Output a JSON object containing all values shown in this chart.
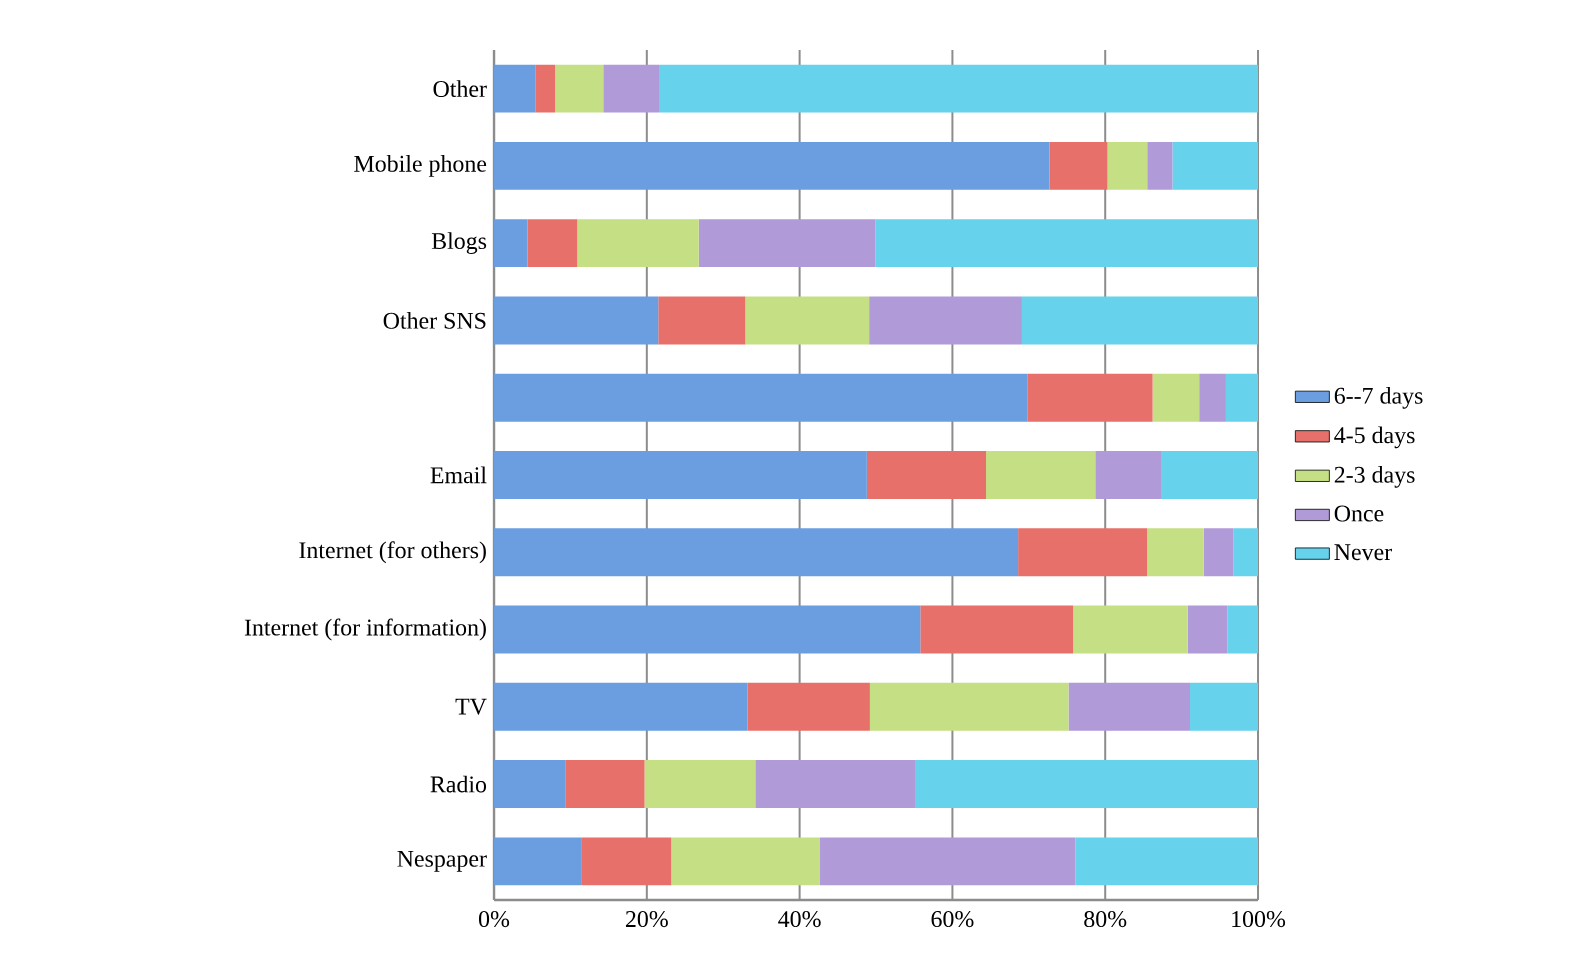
{
  "chart_data": {
    "type": "bar",
    "orientation": "horizontal",
    "stacked": true,
    "categories": [
      "Other",
      "Mobile phone",
      "Blogs",
      "Other SNS",
      null,
      "Email",
      "Internet (for others)",
      "Internet (for information)",
      "TV",
      "Radio",
      "Nespaper"
    ],
    "series": [
      {
        "name": "6--7 days",
        "color": "#6a9ee0",
        "values": [
          5.4,
          72.7,
          4.4,
          21.5,
          69.8,
          48.8,
          68.6,
          55.8,
          33.2,
          9.4,
          11.5
        ]
      },
      {
        "name": "4-5 days",
        "color": "#e8706a",
        "values": [
          2.6,
          7.6,
          6.5,
          11.4,
          16.4,
          15.6,
          16.9,
          20.0,
          16.0,
          10.3,
          11.7
        ]
      },
      {
        "name": "2-3 days",
        "color": "#c4df84",
        "values": [
          6.3,
          5.2,
          15.9,
          16.2,
          6.1,
          14.3,
          7.4,
          15.0,
          26.0,
          14.5,
          19.4
        ]
      },
      {
        "name": "Once",
        "color": "#b09ad8",
        "values": [
          7.3,
          3.3,
          23.1,
          20.0,
          3.5,
          8.6,
          3.9,
          5.2,
          15.9,
          20.9,
          33.5
        ]
      },
      {
        "name": "Never",
        "color": "#66d2ec",
        "values": [
          78.4,
          11.2,
          50.1,
          30.9,
          4.2,
          12.7,
          3.2,
          4.0,
          8.9,
          44.9,
          23.9
        ]
      }
    ],
    "xlim": [
      0,
      100
    ],
    "xticks": [
      {
        "value": 0,
        "label": "0%"
      },
      {
        "value": 20,
        "label": "20%"
      },
      {
        "value": 40,
        "label": "40%"
      },
      {
        "value": 60,
        "label": "60%"
      },
      {
        "value": 80,
        "label": "80%"
      },
      {
        "value": 100,
        "label": "100%"
      }
    ],
    "grid": "x",
    "legend": "right"
  }
}
